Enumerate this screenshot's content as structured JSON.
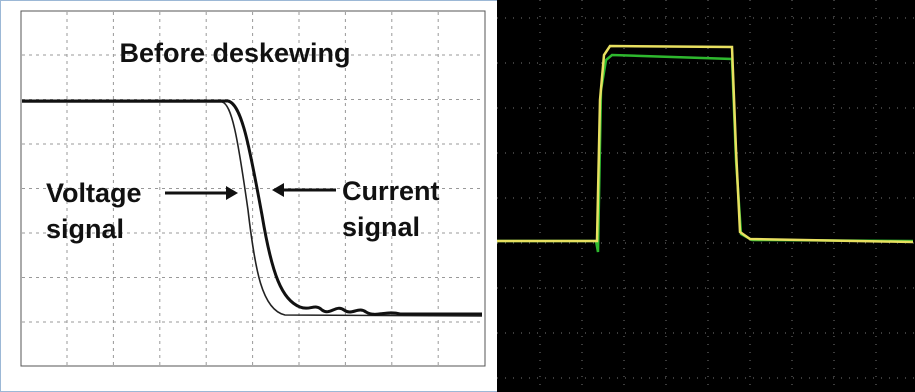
{
  "left_panel": {
    "title": "Before deskewing",
    "voltage_label": [
      "Voltage",
      "signal"
    ],
    "current_label": [
      "Current",
      "signal"
    ]
  }
}
